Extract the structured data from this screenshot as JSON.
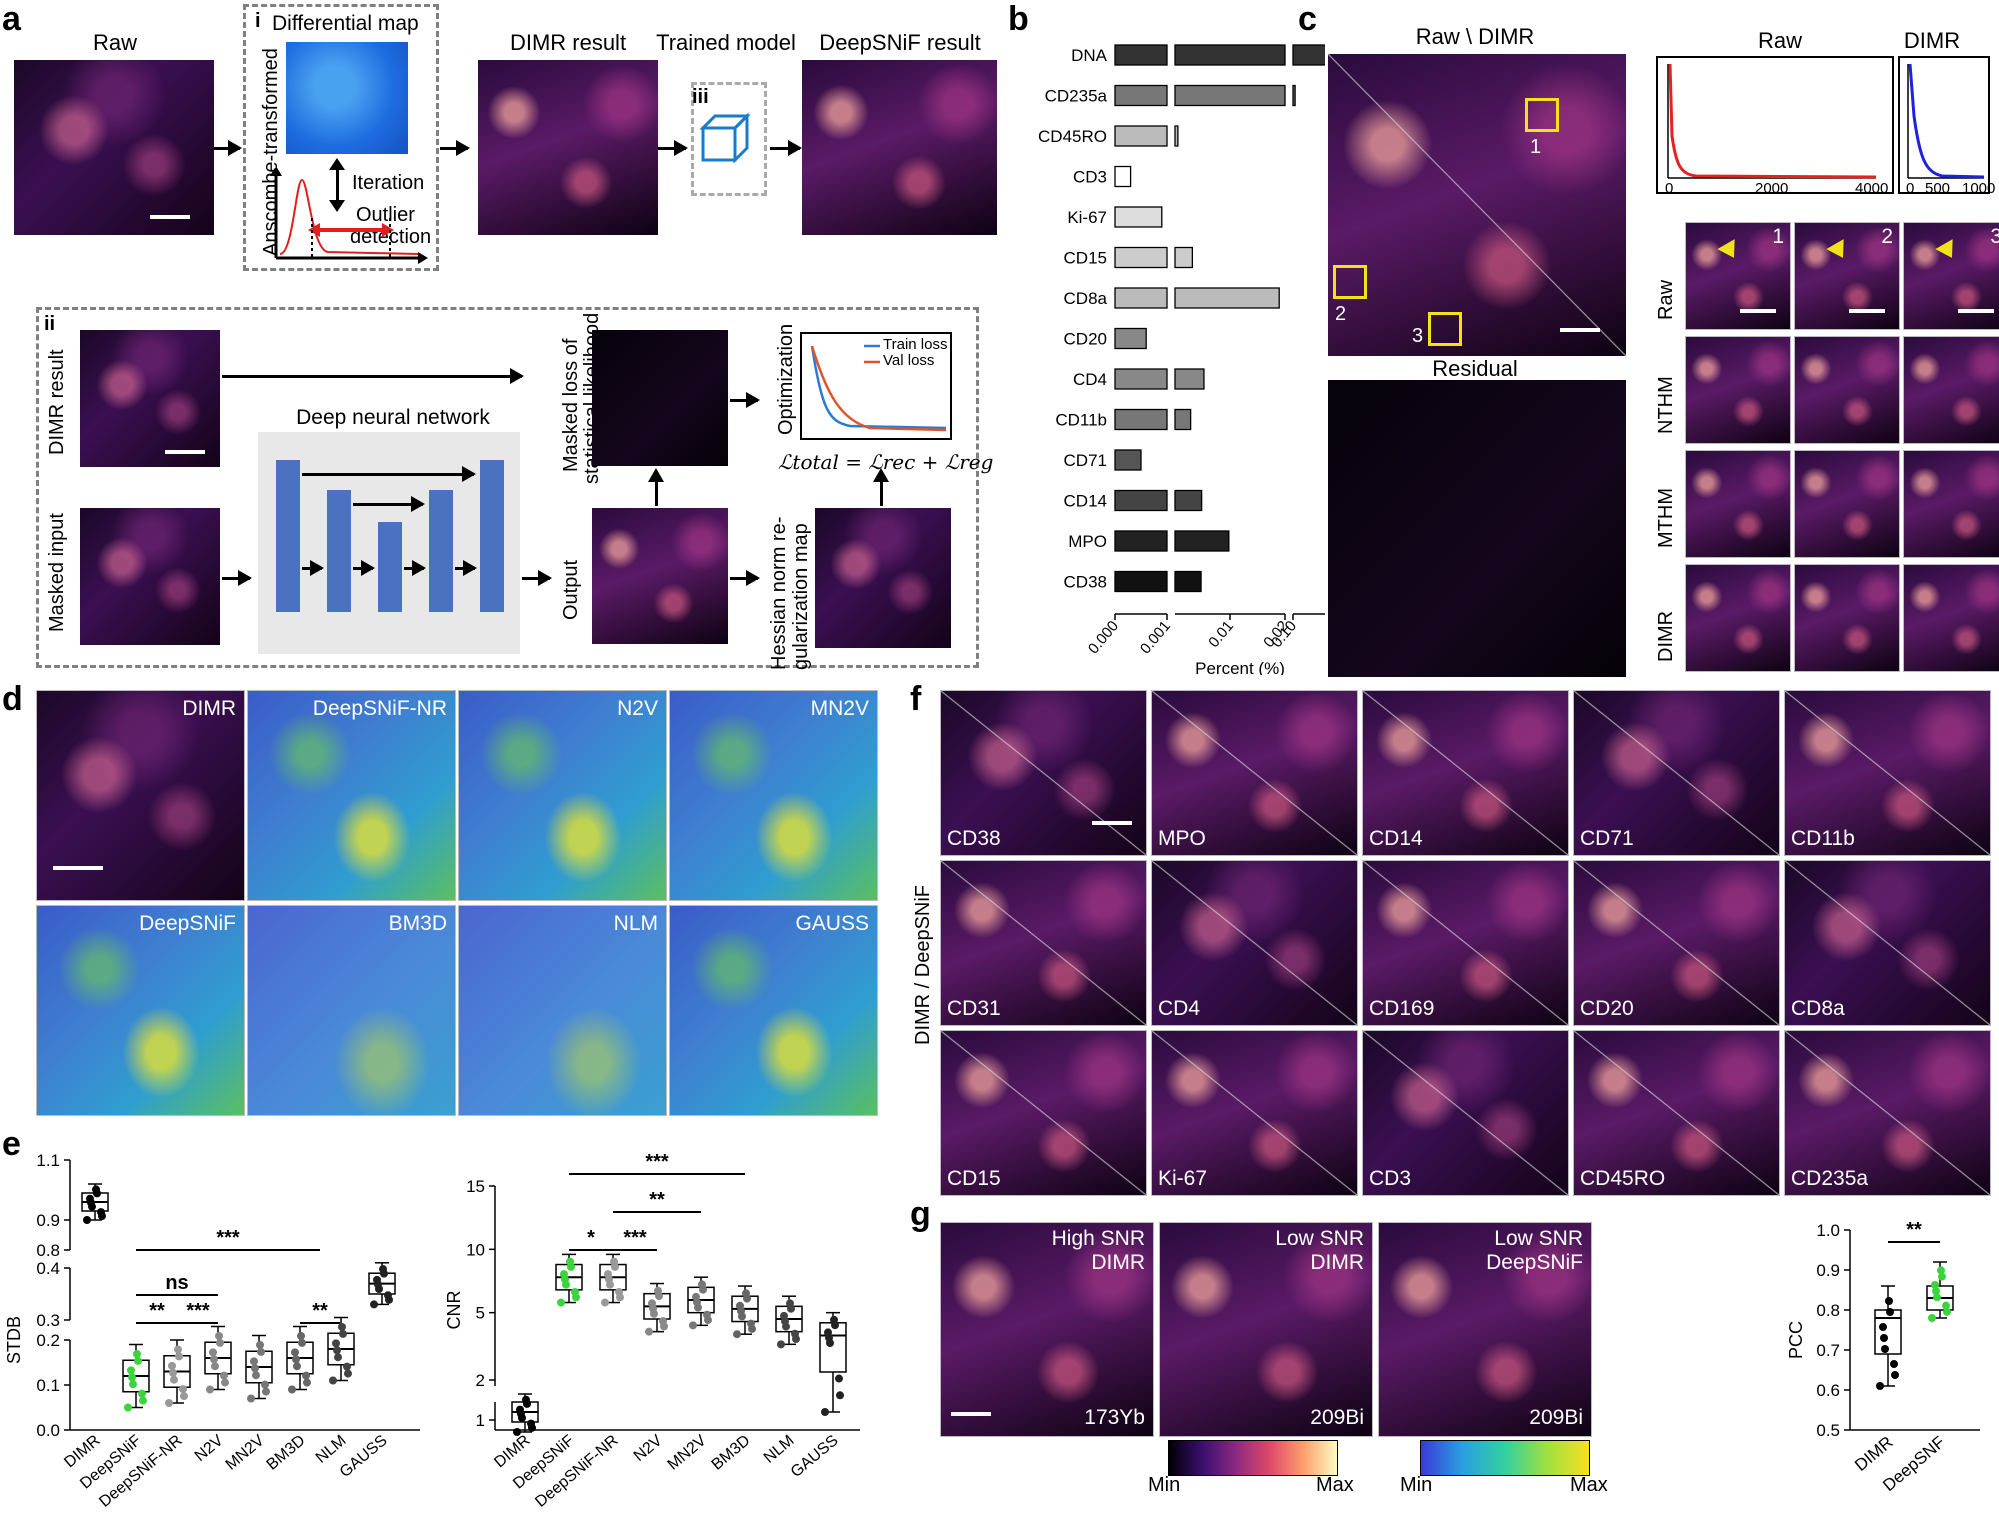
{
  "panel_labels": {
    "a": "a",
    "b": "b",
    "c": "c",
    "d": "d",
    "e": "e",
    "f": "f",
    "g": "g"
  },
  "a": {
    "raw_title": "Raw",
    "diff_map": "Differential map",
    "roman_i": "i",
    "roman_ii": "ii",
    "roman_iii": "iii",
    "anscombe": "Ansсombe-transformed",
    "iteration": "Iteration",
    "outlier1": "Outlier",
    "outlier2": "detection",
    "dimr_result": "DIMR result",
    "trained_model": "Trained model",
    "deepsnif_result": "DeepSNiF result",
    "dimr_result_side": "DIMR result",
    "masked_input": "Masked input",
    "dnn": "Deep neural network",
    "masked_loss1": "Masked loss of",
    "masked_loss2": "statistical likelihood",
    "optimization": "Optimization",
    "train_loss": "Train loss",
    "val_loss": "Val loss",
    "loss_formula": "ℒtotal = ℒrec + ℒreg",
    "output": "Output",
    "hessian1": "Hessian norm re-",
    "hessian2": "gularization map"
  },
  "b": {
    "xlabel": "Percent (%)",
    "ticks": [
      "0.000",
      "0.001",
      "0.01",
      "0.02",
      "0.10",
      "0.27"
    ],
    "chart_data": {
      "type": "bar",
      "categories": [
        "DNA",
        "CD235a",
        "CD45RO",
        "CD3",
        "Ki-67",
        "CD15",
        "CD8a",
        "CD20",
        "CD4",
        "CD11b",
        "CD71",
        "CD14",
        "MPO",
        "CD38"
      ],
      "values": [
        0.27,
        0.105,
        0.0015,
        0.0003,
        0.0009,
        0.004,
        0.019,
        0.0006,
        0.006,
        0.0037,
        0.0005,
        0.0056,
        0.0103,
        0.0055
      ],
      "xlabel": "Percent (%)"
    }
  },
  "c": {
    "title_main": "Raw \\ DIMR",
    "residual": "Residual",
    "raw": "Raw",
    "dimr": "DIMR",
    "box1": "1",
    "box2": "2",
    "box3": "3",
    "hist_raw_ticks": [
      "0",
      "2000",
      "4000"
    ],
    "hist_dimr_ticks": [
      "0",
      "500",
      "1000"
    ],
    "row_labels": [
      "Raw",
      "NTHM",
      "MTHM",
      "DIMR"
    ],
    "col_nums": [
      "1",
      "2",
      "3"
    ]
  },
  "d": {
    "labels": [
      "DIMR",
      "DeepSNiF-NR",
      "N2V",
      "MN2V",
      "DeepSNiF",
      "BM3D",
      "NLM",
      "GAUSS"
    ]
  },
  "e": {
    "left": {
      "ylabel": "STDB",
      "yticks_top": [
        "1.1",
        "0.9",
        "0.8"
      ],
      "yticks_mid": [
        "0.4",
        "0.3"
      ],
      "yticks_bot": [
        "0.2",
        "0.1",
        "0.0"
      ],
      "categories": [
        "DIMR",
        "DeepSNiF",
        "DeepSNiF-NR",
        "N2V",
        "MN2V",
        "BM3D",
        "NLM",
        "GAUSS"
      ],
      "sig": [
        "***",
        "ns",
        "**",
        "***",
        "**"
      ]
    },
    "right": {
      "ylabel": "CNR",
      "yticks": [
        "15",
        "10",
        "5",
        "2",
        "1"
      ],
      "categories": [
        "DIMR",
        "DeepSNiF",
        "DeepSNiF-NR",
        "N2V",
        "MN2V",
        "BM3D",
        "NLM",
        "GAUSS"
      ],
      "sig": [
        "***",
        "**",
        "*",
        "***"
      ]
    },
    "chart_data": [
      {
        "type": "box",
        "name": "STDB",
        "categories": [
          "DIMR",
          "DeepSNiF",
          "DeepSNiF-NR",
          "N2V",
          "MN2V",
          "BM3D",
          "NLM",
          "GAUSS"
        ],
        "medians": [
          0.96,
          0.12,
          0.13,
          0.16,
          0.14,
          0.16,
          0.18,
          0.37
        ]
      },
      {
        "type": "box",
        "name": "CNR",
        "categories": [
          "DIMR",
          "DeepSNiF",
          "DeepSNiF-NR",
          "N2V",
          "MN2V",
          "BM3D",
          "NLM",
          "GAUSS"
        ],
        "medians": [
          1.2,
          7.8,
          7.8,
          5.5,
          6.0,
          5.3,
          4.5,
          3.2
        ]
      }
    ]
  },
  "f": {
    "side_label": "DIMR / DeepSNiF",
    "labels": [
      "CD38",
      "MPO",
      "CD14",
      "CD71",
      "CD11b",
      "CD31",
      "CD4",
      "CD169",
      "CD20",
      "CD8a",
      "CD15",
      "Ki-67",
      "CD3",
      "CD45RO",
      "CD235a"
    ]
  },
  "g": {
    "tiles": [
      {
        "l1": "High SNR",
        "l2": "DIMR",
        "iso": "173Yb"
      },
      {
        "l1": "Low SNR",
        "l2": "DIMR",
        "iso": "209Bi"
      },
      {
        "l1": "Low SNR",
        "l2": "DeepSNiF",
        "iso": "209Bi"
      }
    ],
    "min": "Min",
    "max": "Max",
    "min2": "Min",
    "max2": "Max",
    "ylabel": "PCC",
    "yticks": [
      "1.0",
      "0.9",
      "0.8",
      "0.7",
      "0.6",
      "0.5"
    ],
    "categories": [
      "DIMR",
      "DeepSNF"
    ],
    "sig": "**",
    "chart_data": {
      "type": "box",
      "categories": [
        "DIMR",
        "DeepSNF"
      ],
      "medians": [
        0.78,
        0.83
      ]
    }
  }
}
